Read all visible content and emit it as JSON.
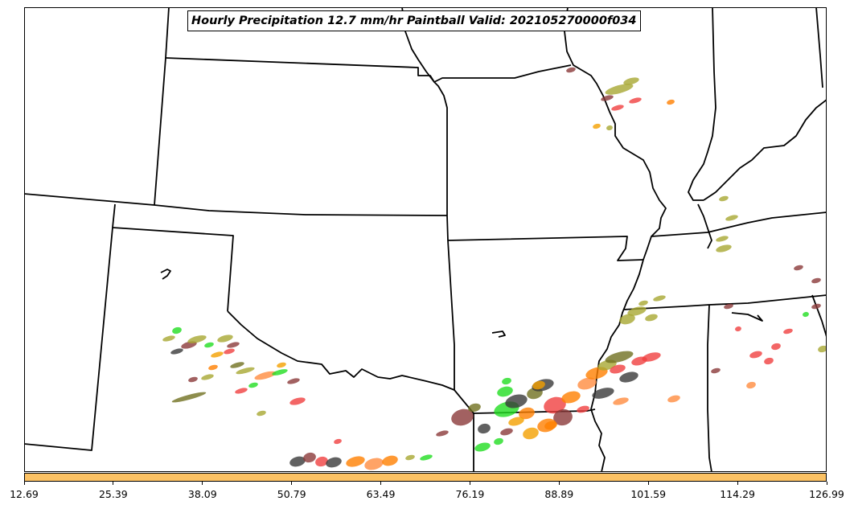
{
  "title": "Hourly Precipitation 12.7 mm/hr Paintball Valid: 202105270000f034",
  "colorbar": {
    "color": "#fcc264",
    "ticks": [
      "12.69",
      "25.39",
      "38.09",
      "50.79",
      "63.49",
      "76.19",
      "88.89",
      "101.59",
      "114.29",
      "126.99"
    ]
  },
  "colors": {
    "border": "#000000",
    "paintball_palette": [
      "#3a3a3a",
      "#8b3a3a",
      "#a8a832",
      "#f04040",
      "#22dd22",
      "#ff7f00",
      "#f4a000",
      "#707020",
      "#ff8c40"
    ]
  }
}
